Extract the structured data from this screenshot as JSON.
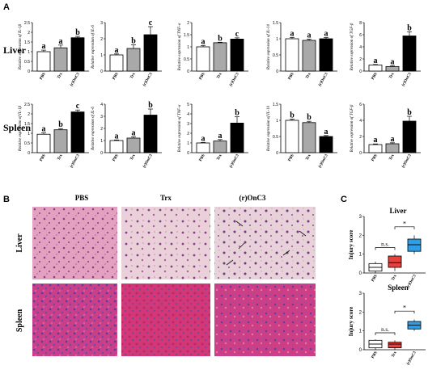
{
  "panel_labels": {
    "a": "A",
    "b": "B",
    "c": "C"
  },
  "rows": [
    "Liver",
    "Spleen"
  ],
  "groups": [
    "PBS",
    "Trx",
    "(r)OnC3"
  ],
  "bar_colors": [
    "#ffffff",
    "#a9a9a9",
    "#000000"
  ],
  "chart_data": [
    {
      "type": "bar",
      "tissue": "Liver",
      "ylabel": "Relative expression of IL-1β",
      "ylim": [
        0,
        2.5
      ],
      "yticks": [
        0,
        0.5,
        1.0,
        1.5,
        2.0,
        2.5
      ],
      "categories": [
        "PBS",
        "Trx",
        "(r)OnC3"
      ],
      "values": [
        1.0,
        1.2,
        1.72
      ],
      "errors": [
        0.08,
        0.14,
        0.07
      ],
      "letters": [
        "a",
        "a",
        "b"
      ]
    },
    {
      "type": "bar",
      "tissue": "Liver",
      "ylabel": "Relative expression of IL-6",
      "ylim": [
        0,
        3
      ],
      "yticks": [
        0,
        1,
        2,
        3
      ],
      "categories": [
        "PBS",
        "Trx",
        "(r)OnC3"
      ],
      "values": [
        1.0,
        1.4,
        2.25
      ],
      "errors": [
        0.06,
        0.22,
        0.5
      ],
      "letters": [
        "a",
        "b",
        "c"
      ]
    },
    {
      "type": "bar",
      "tissue": "Liver",
      "ylabel": "Relative expression of TNF-α",
      "ylim": [
        0,
        2.0
      ],
      "yticks": [
        0,
        0.5,
        1.0,
        1.5,
        2.0
      ],
      "categories": [
        "PBS",
        "Trx",
        "(r)OnC3"
      ],
      "values": [
        1.0,
        1.17,
        1.32
      ],
      "errors": [
        0.05,
        0.02,
        0.05
      ],
      "letters": [
        "a",
        "b",
        "c"
      ]
    },
    {
      "type": "bar",
      "tissue": "Liver",
      "ylabel": "Relative expression of IL-10",
      "ylim": [
        0,
        1.5
      ],
      "yticks": [
        0,
        0.5,
        1.0,
        1.5
      ],
      "categories": [
        "PBS",
        "Trx",
        "(r)OnC3"
      ],
      "values": [
        1.0,
        0.95,
        1.0
      ],
      "errors": [
        0.04,
        0.04,
        0.04
      ],
      "letters": [
        "a",
        "a",
        "a"
      ]
    },
    {
      "type": "bar",
      "tissue": "Liver",
      "ylabel": "Relative expression of TGF-β",
      "ylim": [
        0,
        8
      ],
      "yticks": [
        0,
        2,
        4,
        6,
        8
      ],
      "categories": [
        "PBS",
        "Trx",
        "(r)OnC3"
      ],
      "values": [
        1.0,
        0.75,
        5.8
      ],
      "errors": [
        0.08,
        0.15,
        0.7
      ],
      "letters": [
        "a",
        "a",
        "b"
      ]
    },
    {
      "type": "bar",
      "tissue": "Spleen",
      "ylabel": "Relative expression of IL-1β",
      "ylim": [
        0,
        2.5
      ],
      "yticks": [
        0,
        0.5,
        1.0,
        1.5,
        2.0,
        2.5
      ],
      "categories": [
        "PBS",
        "Trx",
        "(r)OnC3"
      ],
      "values": [
        0.95,
        1.18,
        2.1
      ],
      "errors": [
        0.07,
        0.06,
        0.1
      ],
      "letters": [
        "a",
        "b",
        "c"
      ]
    },
    {
      "type": "bar",
      "tissue": "Spleen",
      "ylabel": "Relative expression of IL-6",
      "ylim": [
        0,
        4
      ],
      "yticks": [
        0,
        1,
        2,
        3,
        4
      ],
      "categories": [
        "PBS",
        "Trx",
        "(r)OnC3"
      ],
      "values": [
        1.0,
        1.2,
        3.1
      ],
      "errors": [
        0.05,
        0.1,
        0.5
      ],
      "letters": [
        "a",
        "a",
        "b"
      ]
    },
    {
      "type": "bar",
      "tissue": "Spleen",
      "ylabel": "Relative expression of TNF-α",
      "ylim": [
        0,
        5
      ],
      "yticks": [
        0,
        1,
        2,
        3,
        4,
        5
      ],
      "categories": [
        "PBS",
        "Trx",
        "(r)OnC3"
      ],
      "values": [
        1.0,
        1.2,
        3.05
      ],
      "errors": [
        0.05,
        0.15,
        0.65
      ],
      "letters": [
        "a",
        "a",
        "b"
      ]
    },
    {
      "type": "bar",
      "tissue": "Spleen",
      "ylabel": "Relative expression of IL-10",
      "ylim": [
        0,
        1.5
      ],
      "yticks": [
        0,
        0.5,
        1.0,
        1.5
      ],
      "categories": [
        "PBS",
        "Trx",
        "(r)OnC3"
      ],
      "values": [
        1.0,
        0.93,
        0.5
      ],
      "errors": [
        0.04,
        0.04,
        0.03
      ],
      "letters": [
        "b",
        "b",
        "a"
      ]
    },
    {
      "type": "bar",
      "tissue": "Spleen",
      "ylabel": "Relative expression of TGF-β",
      "ylim": [
        0,
        6
      ],
      "yticks": [
        0,
        2,
        4,
        6
      ],
      "categories": [
        "PBS",
        "Trx",
        "(r)OnC3"
      ],
      "values": [
        1.0,
        1.1,
        3.9
      ],
      "errors": [
        0.08,
        0.12,
        0.6
      ],
      "letters": [
        "a",
        "a",
        "b"
      ]
    }
  ],
  "histology": {
    "columns": [
      "PBS",
      "Trx",
      "(r)OnC3"
    ],
    "rows": [
      "Liver",
      "Spleen"
    ]
  },
  "injury": {
    "ylabel": "Injury score",
    "ylim": [
      0,
      3
    ],
    "yticks": [
      0,
      1,
      2,
      3
    ],
    "colors": [
      "#ffffff",
      "#e8403a",
      "#2f9ee6"
    ],
    "ns_label": "n.s.",
    "sig_label": "*",
    "charts": [
      {
        "type": "box",
        "title": "Liver",
        "categories": [
          "PBS",
          "Trx",
          "(r)OnC3"
        ],
        "boxes": [
          {
            "min": 0,
            "q1": 0.1,
            "median": 0.3,
            "q3": 0.5,
            "max": 0.6
          },
          {
            "min": 0.1,
            "q1": 0.3,
            "median": 0.55,
            "q3": 0.9,
            "max": 1.0
          },
          {
            "min": 1.0,
            "q1": 1.15,
            "median": 1.5,
            "q3": 1.8,
            "max": 2.0
          }
        ]
      },
      {
        "type": "box",
        "title": "Spleen",
        "categories": [
          "PBS",
          "Trx",
          "(r)OnC3"
        ],
        "boxes": [
          {
            "min": 0,
            "q1": 0.1,
            "median": 0.3,
            "q3": 0.5,
            "max": 0.55
          },
          {
            "min": 0,
            "q1": 0.1,
            "median": 0.3,
            "q3": 0.4,
            "max": 0.5
          },
          {
            "min": 1.0,
            "q1": 1.1,
            "median": 1.3,
            "q3": 1.5,
            "max": 1.6
          }
        ]
      }
    ]
  }
}
